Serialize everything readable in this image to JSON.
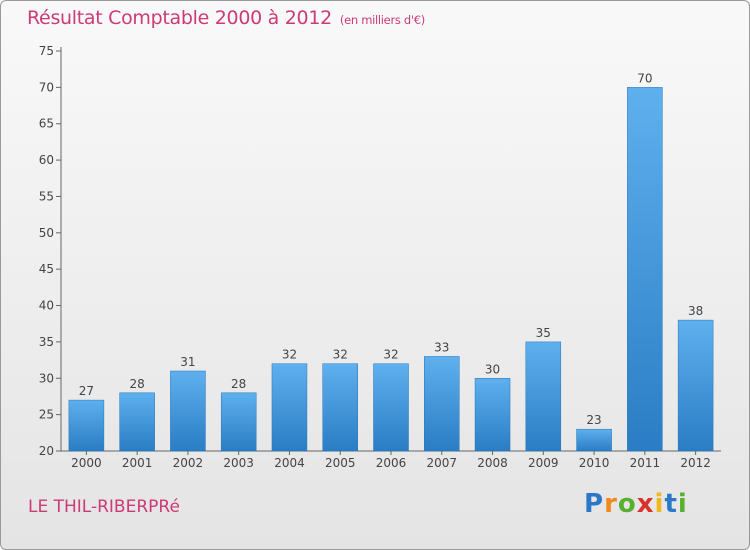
{
  "chart_data": {
    "type": "bar",
    "title": "Résultat Comptable 2000 à 2012",
    "subtitle": "(en milliers d'€)",
    "xlabel": "",
    "ylabel": "",
    "categories": [
      "2000",
      "2001",
      "2002",
      "2003",
      "2004",
      "2005",
      "2006",
      "2007",
      "2008",
      "2009",
      "2010",
      "2011",
      "2012"
    ],
    "values": [
      27,
      28,
      31,
      28,
      32,
      32,
      32,
      33,
      30,
      35,
      23,
      70,
      38
    ],
    "ylim": [
      20,
      75
    ],
    "yticks": [
      20,
      25,
      30,
      35,
      40,
      45,
      50,
      55,
      60,
      65,
      70,
      75
    ],
    "grid": false,
    "legend": "none",
    "bar_color": "#4a9fe0"
  },
  "commune_name": "LE THIL-RIBERPRé",
  "logo": {
    "letters": [
      "P",
      "r",
      "o",
      "x",
      "i",
      "t",
      "i"
    ],
    "colors": [
      "#2b78c8",
      "#f08a1c",
      "#58b030",
      "#d8322a",
      "#f0b81c",
      "#2b78c8",
      "#58b030"
    ]
  }
}
